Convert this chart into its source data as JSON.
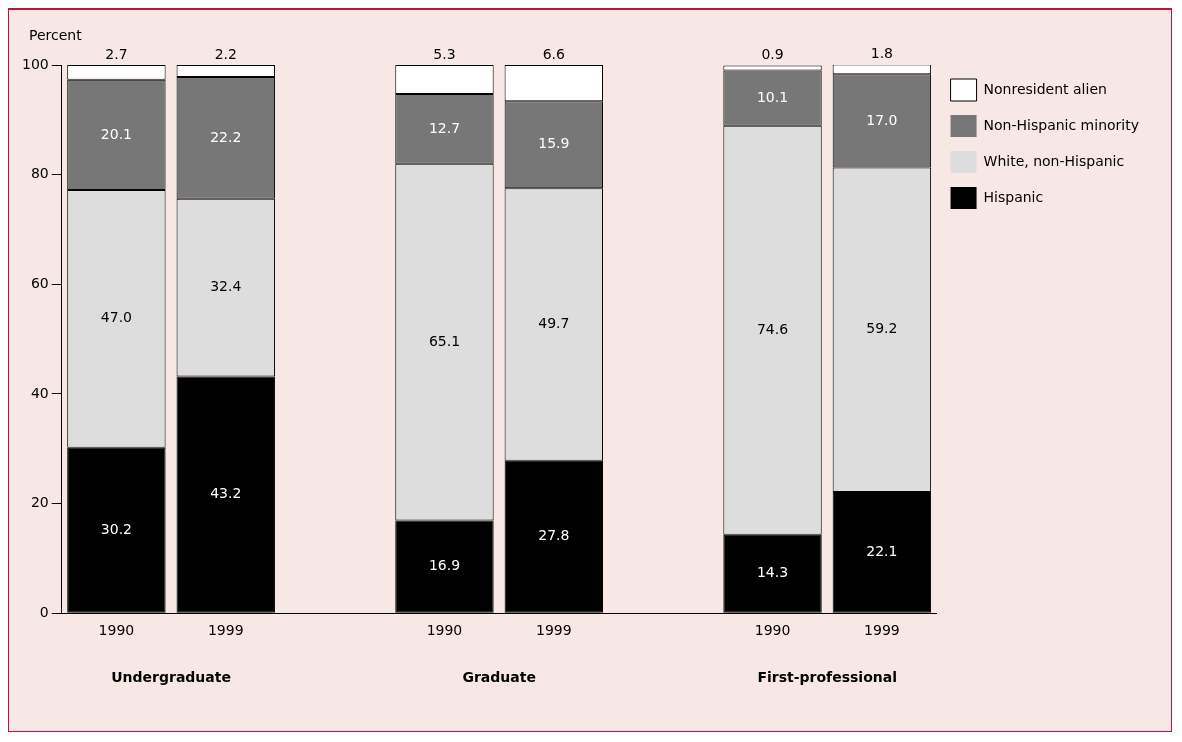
{
  "chart_data": {
    "type": "bar",
    "stacked": true,
    "ylabel": "Percent",
    "categories": [
      "1990",
      "1999",
      null,
      "1990",
      "1999",
      null,
      "1990",
      "1999"
    ],
    "series": [
      {
        "name": "Hispanic",
        "color": "#000000",
        "values": [
          30.2,
          43.2,
          null,
          16.9,
          27.8,
          null,
          14.3,
          22.1
        ],
        "value_labels": [
          "30.2",
          "43.2",
          null,
          "16.9",
          "27.8",
          null,
          "14.3",
          "22.1"
        ]
      },
      {
        "name": "White, non-Hispanic",
        "color": "#dddddd",
        "values": [
          47.0,
          32.4,
          null,
          65.1,
          49.7,
          null,
          74.6,
          59.2
        ],
        "value_labels": [
          "47.0",
          "32.4",
          null,
          "65.1",
          "49.7",
          null,
          "74.6",
          "59.2"
        ]
      },
      {
        "name": "Non-Hispanic minority",
        "color": "#777777",
        "values": [
          20.1,
          22.2,
          null,
          12.7,
          15.9,
          null,
          10.1,
          17.0
        ],
        "value_labels": [
          "20.1",
          "22.2",
          null,
          "12.7",
          "15.9",
          null,
          "10.1",
          "17.0"
        ]
      },
      {
        "name": "Nonresident alien",
        "color": "#ffffff",
        "values": [
          2.7,
          2.2,
          null,
          5.3,
          6.6,
          null,
          0.9,
          1.8
        ],
        "value_labels": [
          "2.7",
          "2.2",
          null,
          "5.3",
          "6.6",
          null,
          "0.9",
          "1.8"
        ]
      }
    ],
    "annotations": [
      "Undergraduate",
      "Graduate",
      "First-professional"
    ],
    "ylim": [
      0,
      100
    ],
    "yticks": [
      0,
      20,
      40,
      60,
      80,
      100
    ],
    "grid": false,
    "legend": "top right"
  }
}
